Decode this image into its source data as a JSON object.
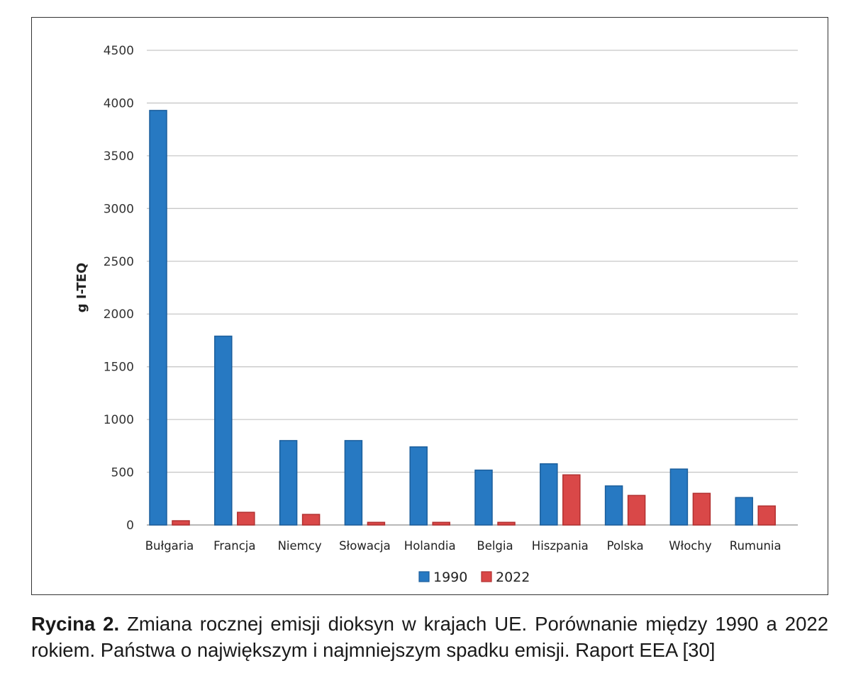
{
  "chart_data": {
    "type": "bar",
    "ylabel": "g I-TEQ",
    "ylim": [
      0,
      4500
    ],
    "yticks": [
      "0",
      "500",
      "1000",
      "1500",
      "2000",
      "2500",
      "3000",
      "3500",
      "4000",
      "4500"
    ],
    "grid": true,
    "legend_position": "bottom",
    "categories": [
      "Bułgaria",
      "Francja",
      "Niemcy",
      "Słowacja",
      "Holandia",
      "Belgia",
      "Hiszpania",
      "Polska",
      "Włochy",
      "Rumunia"
    ],
    "series": [
      {
        "name": "1990",
        "color": "#2779c2",
        "values": [
          3930,
          1790,
          800,
          800,
          740,
          520,
          580,
          370,
          530,
          260
        ]
      },
      {
        "name": "2022",
        "color": "#d94848",
        "values": [
          40,
          120,
          100,
          25,
          25,
          25,
          475,
          280,
          300,
          180
        ]
      }
    ]
  },
  "caption": {
    "label": "Rycina 2.",
    "text": " Zmiana rocznej emisji dioksyn w krajach UE. Porównanie między 1990 a 2022 rokiem. Państwa o największym i najmniejszym spadku emisji. Raport EEA [30]"
  }
}
